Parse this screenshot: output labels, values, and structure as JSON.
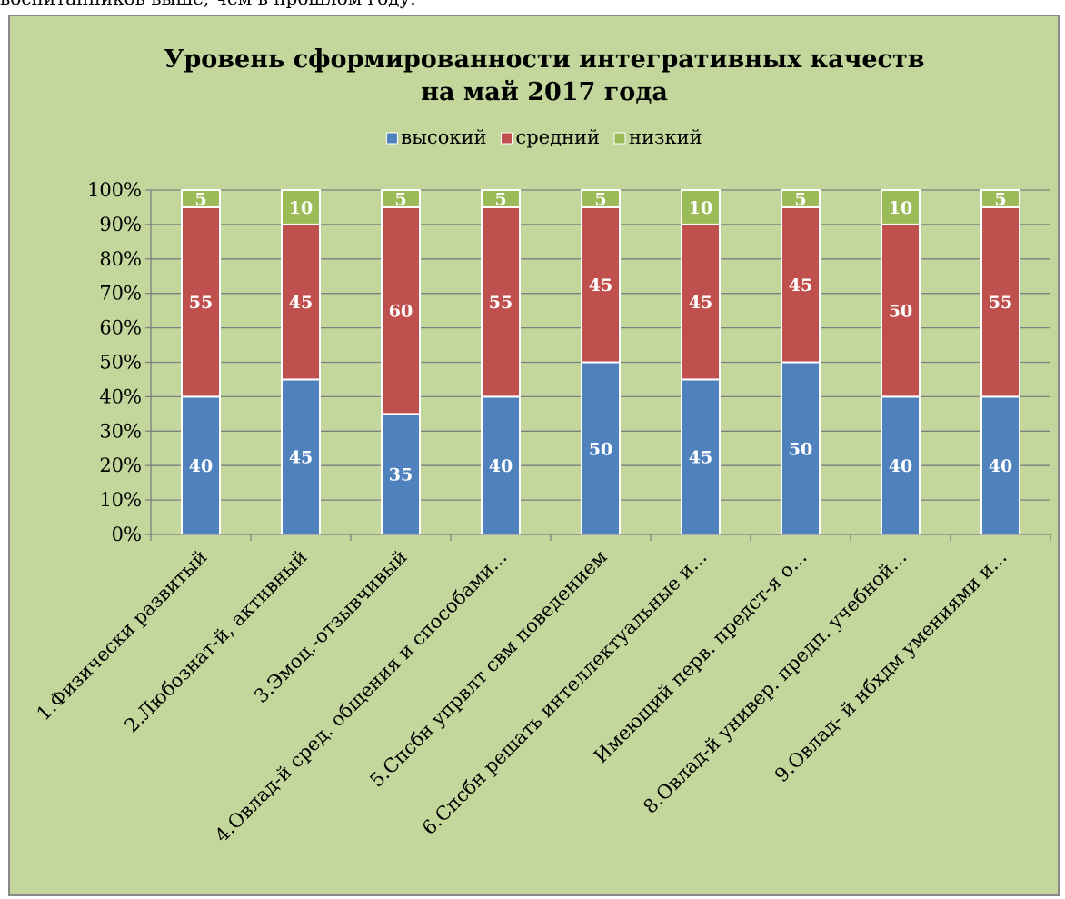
{
  "page": {
    "top_text": "воспитанников выше, чем в прошлом году."
  },
  "chart_data": {
    "type": "bar",
    "stacked": "percent",
    "title": "Уровень сформированности интегративных качеств",
    "subtitle": "на май 2017 года",
    "categories": [
      "1.Физически развитый",
      "2.Любознат-й, активный",
      "3.Эмоц.-отзывчивый",
      "4.Овлад-й сред. общения и способами...",
      "5.Спсбн упрвлт свм поведением",
      "6.Спсбн решать интеллектуальные и...",
      "Имеющий перв. предст-я о...",
      "8.Овлад-й универ. предп. учебной...",
      "9.Овлад- й нбхдм умениями и..."
    ],
    "series": [
      {
        "name": "высокий",
        "values": [
          40,
          45,
          35,
          40,
          50,
          45,
          50,
          40,
          40
        ],
        "color": "#4f81bd"
      },
      {
        "name": "средний",
        "values": [
          55,
          45,
          60,
          55,
          45,
          45,
          45,
          50,
          55
        ],
        "color": "#c0504d"
      },
      {
        "name": "низкий",
        "values": [
          5,
          10,
          5,
          5,
          5,
          10,
          5,
          10,
          5
        ],
        "color": "#9bbb59"
      }
    ],
    "data_labels": [
      [
        "40",
        "45",
        "35",
        "40",
        "50",
        "45",
        "50",
        "40",
        "40"
      ],
      [
        "55",
        "45",
        "60",
        "55",
        "45",
        "45",
        "45",
        "50",
        "55"
      ],
      [
        "5",
        "10",
        "5",
        "5",
        "5",
        "10",
        "5",
        "10",
        "5"
      ]
    ],
    "yticks": [
      "0%",
      "10%",
      "20%",
      "30%",
      "40%",
      "50%",
      "60%",
      "70%",
      "80%",
      "90%",
      "100%"
    ],
    "ylim": [
      0,
      100
    ],
    "legend_position": "top",
    "grid": true,
    "plot_background": "#c3d69b"
  }
}
